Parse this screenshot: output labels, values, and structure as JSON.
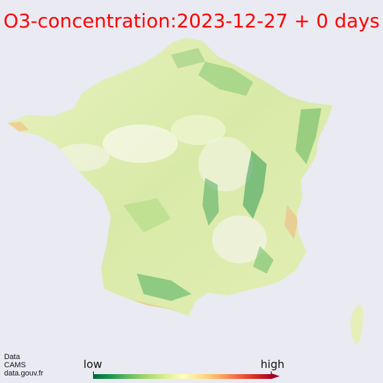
{
  "title": "O3-concentration:2023-12-27 + 0 days",
  "title_color": "#ff0000",
  "background_color": "#eaeaf2",
  "map": {
    "region": "France",
    "colormap": [
      "#006837",
      "#1a9850",
      "#66bd63",
      "#a6d96a",
      "#d9ef8b",
      "#ffffbf",
      "#fee08b",
      "#fdae61",
      "#f46d43",
      "#d73027",
      "#a50026"
    ]
  },
  "credit": {
    "line1": "Data",
    "line2": "CAMS",
    "line3": "data.gouv.fr"
  },
  "legend": {
    "low_label": "low",
    "high_label": "high"
  }
}
